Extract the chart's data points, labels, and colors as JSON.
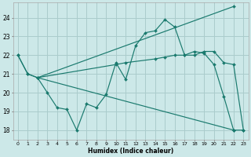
{
  "title": "",
  "xlabel": "Humidex (Indice chaleur)",
  "bg_color": "#cce8e8",
  "grid_color": "#aacccc",
  "line_color": "#1a7a6e",
  "xlim": [
    -0.5,
    23.5
  ],
  "ylim": [
    17.5,
    24.8
  ],
  "yticks": [
    18,
    19,
    20,
    21,
    22,
    23,
    24
  ],
  "xticks": [
    0,
    1,
    2,
    3,
    4,
    5,
    6,
    7,
    8,
    9,
    10,
    11,
    12,
    13,
    14,
    15,
    16,
    17,
    18,
    19,
    20,
    21,
    22,
    23
  ],
  "series": [
    {
      "x": [
        0,
        1,
        2,
        3,
        4,
        5,
        6,
        7,
        8,
        9,
        10,
        11,
        12,
        13,
        14,
        15,
        16,
        17,
        18,
        19,
        20,
        21,
        22,
        23
      ],
      "y": [
        22.0,
        21.0,
        20.8,
        20.0,
        19.2,
        19.1,
        18.0,
        19.4,
        19.2,
        19.9,
        21.6,
        20.7,
        22.5,
        23.2,
        23.3,
        23.9,
        23.5,
        22.0,
        22.2,
        22.1,
        21.5,
        19.8,
        18.0,
        18.0
      ]
    },
    {
      "x": [
        2,
        22
      ],
      "y": [
        20.8,
        24.6
      ]
    },
    {
      "x": [
        2,
        22
      ],
      "y": [
        20.8,
        18.0
      ]
    },
    {
      "x": [
        0,
        1,
        2,
        10,
        11,
        14,
        15,
        16,
        17,
        18,
        19,
        20,
        21,
        22,
        23
      ],
      "y": [
        22.0,
        21.0,
        20.8,
        21.5,
        21.6,
        21.8,
        21.9,
        22.0,
        22.0,
        22.0,
        22.2,
        22.2,
        21.6,
        21.5,
        18.0
      ]
    }
  ]
}
